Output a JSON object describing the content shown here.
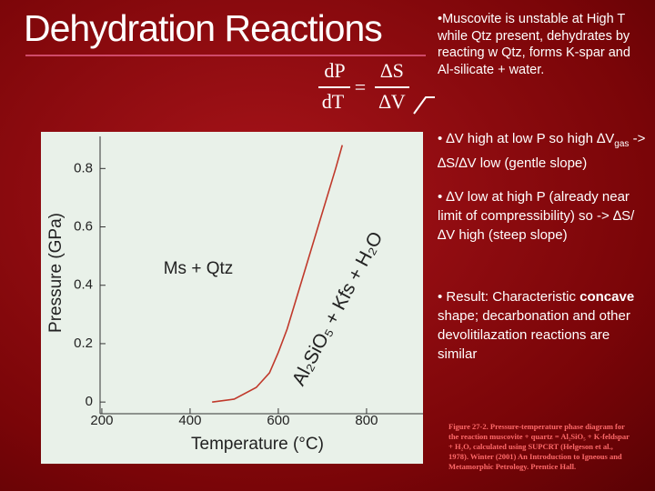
{
  "title": "Dehydration Reactions",
  "equation": {
    "num_left": "dP",
    "den_left": "dT",
    "equals": "=",
    "num_right": "∆S",
    "den_right": "∆V"
  },
  "bullets": {
    "b1": "•Muscovite is  unstable at High T while Qtz present, dehydrates by reacting w Qtz, forms K-spar and Al-silicate + water.",
    "b2a": "• ∆V high at low P so high ∆V",
    "b2sub": "gas",
    "b2b": " -> ∆S/∆V low (gentle slope)",
    "b3": "• ∆V low at high P (already near limit of compressibility) so  ->  ∆S/∆V high (steep slope)",
    "b4a": "• Result: Characteristic ",
    "b4bold": "concave",
    "b4b": " shape; decarbonation and other devolitilazation reactions are similar"
  },
  "caption": "Figure 27-2. Pressure-temperature phase diagram for the reaction muscovite + quartz = Al₂SiO₅ + K-feldspar + H₂O, calculated using SUPCRT (Helgeson et al., 1978). Winter (2001) An Introduction to Igneous and Metamorphic Petrology. Prentice Hall.",
  "chart_data": {
    "type": "line",
    "x_label": "Temperature (°C)",
    "y_label": "Pressure (GPa)",
    "annotations": [
      "Ms + Qtz",
      "Al₂SiO₅ + Kfs + H₂O"
    ],
    "x": [
      450,
      500,
      550,
      580,
      600,
      620,
      650,
      690,
      730,
      745
    ],
    "series": [
      {
        "color": "#c0392b",
        "values": [
          0,
          0.01,
          0.05,
          0.1,
          0.17,
          0.25,
          0.4,
          0.6,
          0.8,
          0.88
        ]
      }
    ],
    "xlim": [
      196,
      928
    ],
    "ylim": [
      -0.04,
      0.91
    ],
    "xticks": [
      200,
      400,
      600,
      800
    ],
    "yticks": [
      0,
      0.2,
      0.4,
      0.6,
      0.8
    ]
  }
}
